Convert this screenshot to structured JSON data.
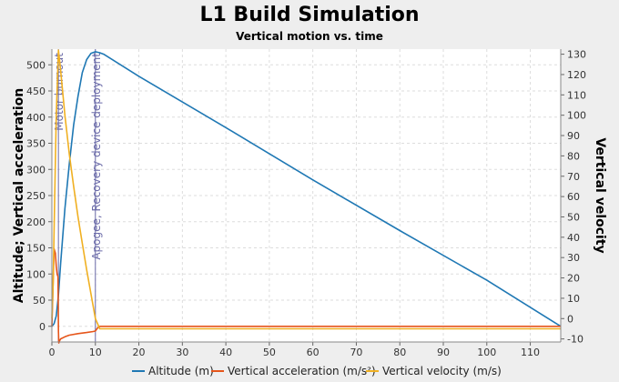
{
  "title": "L1 Build Simulation",
  "subtitle": "Vertical motion vs. time",
  "colors": {
    "altitude": "#1f78b4",
    "acceleration": "#e6551a",
    "velocity": "#f0b022",
    "event": "#6a6aa8",
    "background": "#eeeeee",
    "plot_background": "#ffffff",
    "grid": "#dddddd"
  },
  "chart_data": {
    "type": "line",
    "xlabel": "",
    "ylabel": "Altitude; Vertical acceleration",
    "y2label": "Vertical velocity",
    "xlim": [
      0,
      117
    ],
    "ylim": [
      -30,
      530
    ],
    "y2lim": [
      -11.5,
      132.5
    ],
    "xticks": [
      0,
      10,
      20,
      30,
      40,
      50,
      60,
      70,
      80,
      90,
      100,
      110
    ],
    "yticks": [
      0,
      50,
      100,
      150,
      200,
      250,
      300,
      350,
      400,
      450,
      500
    ],
    "y2ticks": [
      -10,
      0,
      10,
      20,
      30,
      40,
      50,
      60,
      70,
      80,
      90,
      100,
      110,
      120,
      130
    ],
    "grid": true,
    "legend_position": "bottom",
    "series": [
      {
        "name": "Altitude (m)",
        "axis": "left",
        "x": [
          0,
          0.5,
          1,
          1.5,
          2,
          3,
          4,
          5,
          6,
          7,
          8,
          9,
          10,
          11,
          12,
          20,
          40,
          60,
          80,
          100,
          117
        ],
        "y": [
          0,
          5,
          20,
          60,
          120,
          225,
          310,
          385,
          440,
          485,
          510,
          522,
          525,
          523,
          520,
          478,
          380,
          280,
          183,
          88,
          0
        ]
      },
      {
        "name": "Vertical acceleration (m/s²)",
        "axis": "left",
        "x": [
          0,
          0.2,
          0.5,
          0.8,
          1,
          1.2,
          1.4,
          1.5,
          1.6,
          1.8,
          2,
          3,
          4,
          6,
          8,
          9.5,
          10,
          10.5,
          11,
          12,
          117
        ],
        "y": [
          0,
          60,
          148,
          140,
          115,
          100,
          95,
          -10,
          -32,
          -27,
          -24,
          -20,
          -17,
          -14,
          -12,
          -10,
          -9,
          -3,
          0,
          0,
          0
        ]
      },
      {
        "name": "Vertical velocity (m/s)",
        "axis": "right",
        "x": [
          0,
          0.3,
          0.6,
          1,
          1.5,
          2,
          3,
          4,
          5,
          6,
          7,
          8,
          9,
          10,
          11,
          12,
          117
        ],
        "y": [
          0,
          18,
          55,
          100,
          132,
          122,
          100,
          81,
          65,
          50,
          37,
          24,
          12,
          0,
          -5,
          -5,
          -5
        ]
      }
    ],
    "events": [
      {
        "x": 1.5,
        "label": "Motor burnout"
      },
      {
        "x": 10,
        "label": "Apogee, Recovery device deployment"
      }
    ]
  }
}
